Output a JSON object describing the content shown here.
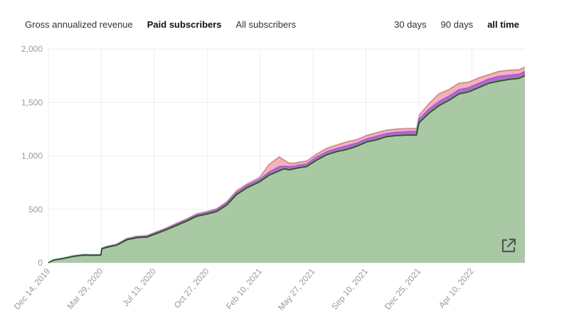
{
  "tabs": {
    "metric": [
      {
        "label": "Gross annualized revenue",
        "active": false
      },
      {
        "label": "Paid subscribers",
        "active": true
      },
      {
        "label": "All subscribers",
        "active": false
      }
    ],
    "range": [
      {
        "label": "30 days",
        "active": false
      },
      {
        "label": "90 days",
        "active": false
      },
      {
        "label": "all time",
        "active": true
      }
    ]
  },
  "icons": {
    "expand": "external-link-icon"
  },
  "colors": {
    "green_fill": "#a9c9a4",
    "green_line": "#2f4f2f",
    "purple": "#a64fc9",
    "pink": "#ee9a9a",
    "red_line": "#c04848",
    "teal_line": "#8fd6d0",
    "grid": "#eeeeee",
    "axis_text": "#9a9a9a"
  },
  "chart_data": {
    "type": "area",
    "title": "",
    "xlabel": "",
    "ylabel": "",
    "ylim": [
      0,
      2000
    ],
    "yticks": [
      0,
      500,
      1000,
      1500,
      2000
    ],
    "ytick_labels": [
      "0",
      "500",
      "1,000",
      "1,500",
      "2,000"
    ],
    "xticks": [
      "Dec 14, 2019",
      "Mar 29, 2020",
      "Jul 13, 2020",
      "Oct 27, 2020",
      "Feb 10, 2021",
      "May 27, 2021",
      "Sep 10, 2021",
      "Dec 25, 2021",
      "Apr 10, 2022"
    ],
    "xlim": [
      "Dec 14, 2019",
      "Jul 25, 2022"
    ],
    "grid": true,
    "legend": "none",
    "x": [
      "Dec 14, 2019",
      "Dec 24, 2019",
      "Jan 13, 2020",
      "Feb 02, 2020",
      "Feb 22, 2020",
      "Mar 13, 2020",
      "Mar 28, 2020",
      "Mar 30, 2020",
      "Apr 09, 2020",
      "Apr 29, 2020",
      "May 19, 2020",
      "Jun 08, 2020",
      "Jun 28, 2020",
      "Jul 18, 2020",
      "Aug 07, 2020",
      "Aug 27, 2020",
      "Sep 16, 2020",
      "Oct 06, 2020",
      "Oct 26, 2020",
      "Nov 15, 2020",
      "Dec 05, 2020",
      "Dec 25, 2020",
      "Jan 04, 2021",
      "Jan 14, 2021",
      "Feb 08, 2021",
      "Feb 28, 2021",
      "Mar 20, 2021",
      "Mar 30, 2021",
      "Apr 09, 2021",
      "Apr 19, 2021",
      "Apr 29, 2021",
      "May 14, 2021",
      "Jun 03, 2021",
      "Jun 23, 2021",
      "Jul 03, 2021",
      "Jul 13, 2021",
      "Aug 02, 2021",
      "Aug 22, 2021",
      "Sep 11, 2021",
      "Oct 01, 2021",
      "Oct 21, 2021",
      "Nov 10, 2021",
      "Nov 30, 2021",
      "Dec 20, 2021",
      "Dec 25, 2021",
      "Jan 14, 2022",
      "Feb 03, 2022",
      "Feb 23, 2022",
      "Mar 15, 2022",
      "Apr 04, 2022",
      "Apr 24, 2022",
      "May 14, 2022",
      "Jun 03, 2022",
      "Jun 23, 2022",
      "Jul 13, 2022",
      "Jul 25, 2022"
    ],
    "series": [
      {
        "values": [
          0,
          25,
          40,
          60,
          72,
          70,
          72,
          130,
          145,
          165,
          215,
          235,
          240,
          275,
          310,
          350,
          390,
          435,
          455,
          480,
          540,
          640,
          670,
          700,
          755,
          820,
          860,
          880,
          870,
          880,
          890,
          900,
          960,
          1010,
          1025,
          1040,
          1060,
          1090,
          1130,
          1150,
          1180,
          1190,
          1195,
          1195,
          1310,
          1400,
          1470,
          1520,
          1580,
          1600,
          1640,
          1680,
          1700,
          1715,
          1725,
          1750
        ]
      },
      {
        "values": [
          0,
          27,
          43,
          63,
          75,
          73,
          75,
          135,
          150,
          170,
          222,
          242,
          248,
          284,
          320,
          362,
          402,
          448,
          469,
          496,
          558,
          660,
          690,
          722,
          778,
          850,
          900,
          905,
          900,
          905,
          915,
          925,
          990,
          1040,
          1055,
          1070,
          1095,
          1120,
          1160,
          1185,
          1210,
          1222,
          1228,
          1230,
          1345,
          1440,
          1510,
          1560,
          1620,
          1640,
          1680,
          1720,
          1745,
          1755,
          1765,
          1790
        ]
      },
      {
        "values": [
          0,
          28,
          45,
          66,
          78,
          76,
          78,
          138,
          154,
          175,
          227,
          248,
          254,
          290,
          327,
          370,
          410,
          458,
          478,
          505,
          570,
          675,
          705,
          735,
          795,
          920,
          990,
          960,
          930,
          930,
          940,
          950,
          1015,
          1070,
          1085,
          1100,
          1130,
          1150,
          1190,
          1215,
          1240,
          1250,
          1255,
          1255,
          1380,
          1490,
          1580,
          1620,
          1680,
          1690,
          1730,
          1760,
          1790,
          1800,
          1805,
          1830
        ]
      }
    ]
  }
}
